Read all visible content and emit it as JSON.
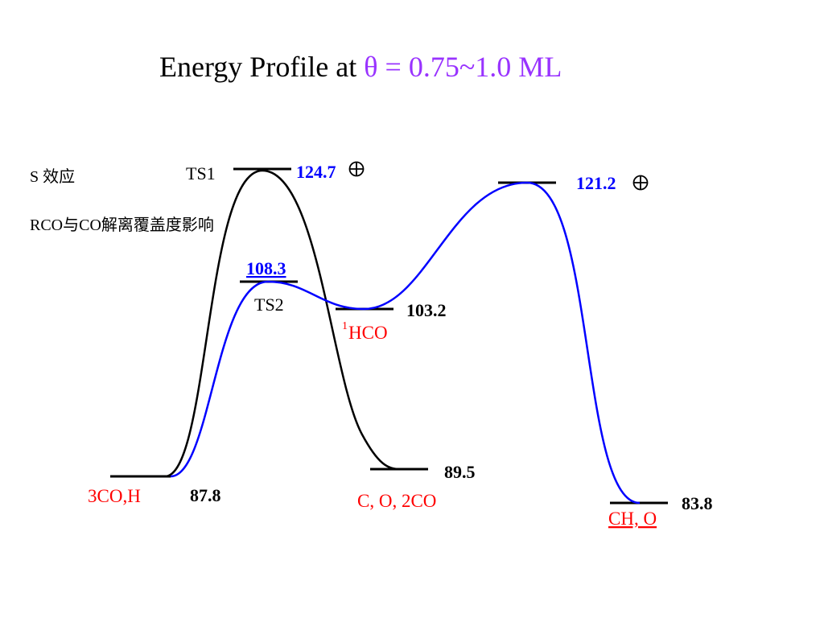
{
  "title": {
    "prefix": "Energy Profile at ",
    "condition": "θ = 0.75~1.0 ML"
  },
  "notes": {
    "line1": "S 效应",
    "line2": "RCO与CO解离覆盖度影响"
  },
  "states": {
    "start": {
      "species": "3CO,H",
      "energy": "87.8"
    },
    "ts1": {
      "label": "TS1",
      "energy": "124.7",
      "mark": "⊕"
    },
    "ts2": {
      "label": "TS2",
      "energy": "108.3"
    },
    "hco": {
      "superscript": "1",
      "species": "HCO",
      "energy": "103.2"
    },
    "c_o": {
      "species": "C, O, 2CO",
      "energy": "89.5"
    },
    "ts3": {
      "energy": "121.2",
      "mark": "⊕"
    },
    "ch_o": {
      "species": "CH, O",
      "energy": "83.8"
    }
  },
  "colors": {
    "title_text": "#000000",
    "title_condition": "#9933ff",
    "path_direct": "#000000",
    "path_via_hco": "#0000ff",
    "species_label": "#ff0000",
    "blue_value": "#0000ff",
    "black_value": "#000000"
  }
}
